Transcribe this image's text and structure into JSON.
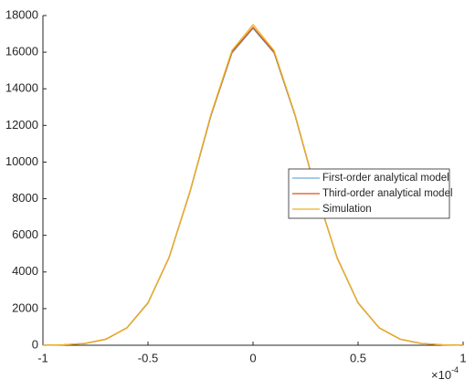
{
  "chart_data": {
    "type": "line",
    "x": [
      -1,
      -0.9,
      -0.8,
      -0.7,
      -0.6,
      -0.5,
      -0.4,
      -0.3,
      -0.2,
      -0.1,
      0,
      0.1,
      0.2,
      0.3,
      0.4,
      0.5,
      0.6,
      0.7,
      0.8,
      0.9,
      1
    ],
    "x_multiplier": {
      "base": "×10",
      "exponent": "-4"
    },
    "series": [
      {
        "name": "First-order analytical model",
        "color": "#6aaed6",
        "values": [
          0,
          25,
          99,
          332,
          950,
          2300,
          4760,
          8370,
          12530,
          15960,
          17300,
          15960,
          12530,
          8370,
          4760,
          2300,
          950,
          332,
          99,
          25,
          0
        ]
      },
      {
        "name": "Third-order analytical model",
        "color": "#d95319",
        "values": [
          0,
          24,
          97,
          330,
          955,
          2320,
          4790,
          8400,
          12580,
          16010,
          17350,
          16010,
          12580,
          8400,
          4790,
          2320,
          955,
          330,
          97,
          24,
          0
        ]
      },
      {
        "name": "Simulation",
        "color": "#edb120",
        "values": [
          0,
          27,
          102,
          340,
          960,
          2330,
          4780,
          8420,
          12620,
          16100,
          17500,
          16090,
          12600,
          8410,
          4770,
          2320,
          960,
          338,
          100,
          26,
          0
        ]
      }
    ],
    "xlim": [
      -1,
      1
    ],
    "xticks": [
      -1,
      -0.5,
      0,
      0.5,
      1
    ],
    "ylim": [
      0,
      18000
    ],
    "yticks": [
      0,
      2000,
      4000,
      6000,
      8000,
      10000,
      12000,
      14000,
      16000,
      18000
    ],
    "legend": "right"
  }
}
